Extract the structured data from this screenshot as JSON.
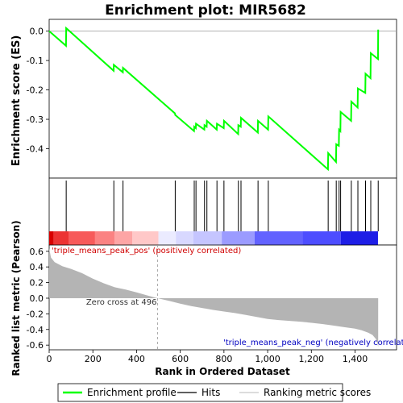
{
  "chart_data": {
    "type": "line",
    "title": "Enrichment plot: MIR5682",
    "xlabel": "Rank in Ordered Dataset",
    "ylabel_top": "Enrichment score (ES)",
    "ylabel_bottom": "Ranked list metric (Pearson)",
    "xlim": [
      0,
      1590
    ],
    "x_ticks": [
      0,
      200,
      400,
      600,
      800,
      1000,
      1200,
      1400
    ],
    "x_tick_labels": [
      "0",
      "200",
      "400",
      "600",
      "800",
      "1,000",
      "1,200",
      "1,400"
    ],
    "es_ylim": [
      -0.5,
      0.04
    ],
    "es_ticks": [
      0.0,
      -0.1,
      -0.2,
      -0.3,
      -0.4
    ],
    "es_tick_labels": [
      "0.0",
      "-0.1",
      "-0.2",
      "-0.3",
      "-0.4"
    ],
    "metric_ylim": [
      -0.66,
      0.68
    ],
    "metric_ticks": [
      0.6,
      0.4,
      0.2,
      0.0,
      -0.2,
      -0.4,
      -0.6
    ],
    "metric_tick_labels": [
      "0.6",
      "0.4",
      "0.2",
      "0.0",
      "-0.2",
      "-0.4",
      "-0.6"
    ],
    "hits": [
      78,
      296,
      338,
      577,
      664,
      672,
      711,
      722,
      768,
      800,
      866,
      878,
      956,
      1003,
      1277,
      1314,
      1327,
      1334,
      1383,
      1413,
      1448,
      1472,
      1506
    ],
    "es_profile": [
      [
        0,
        0.0
      ],
      [
        77,
        -0.05
      ],
      [
        78,
        0.01
      ],
      [
        295,
        -0.135
      ],
      [
        296,
        -0.115
      ],
      [
        337,
        -0.14
      ],
      [
        338,
        -0.125
      ],
      [
        576,
        -0.28
      ],
      [
        577,
        -0.285
      ],
      [
        663,
        -0.34
      ],
      [
        664,
        -0.325
      ],
      [
        671,
        -0.33
      ],
      [
        672,
        -0.315
      ],
      [
        710,
        -0.335
      ],
      [
        711,
        -0.32
      ],
      [
        721,
        -0.325
      ],
      [
        722,
        -0.305
      ],
      [
        767,
        -0.335
      ],
      [
        768,
        -0.315
      ],
      [
        799,
        -0.33
      ],
      [
        800,
        -0.305
      ],
      [
        865,
        -0.35
      ],
      [
        866,
        -0.32
      ],
      [
        877,
        -0.325
      ],
      [
        878,
        -0.295
      ],
      [
        955,
        -0.345
      ],
      [
        956,
        -0.305
      ],
      [
        1002,
        -0.335
      ],
      [
        1003,
        -0.29
      ],
      [
        1276,
        -0.47
      ],
      [
        1277,
        -0.415
      ],
      [
        1313,
        -0.445
      ],
      [
        1314,
        -0.385
      ],
      [
        1326,
        -0.39
      ],
      [
        1327,
        -0.335
      ],
      [
        1333,
        -0.34
      ],
      [
        1334,
        -0.275
      ],
      [
        1382,
        -0.305
      ],
      [
        1383,
        -0.24
      ],
      [
        1412,
        -0.26
      ],
      [
        1413,
        -0.195
      ],
      [
        1447,
        -0.21
      ],
      [
        1448,
        -0.145
      ],
      [
        1471,
        -0.16
      ],
      [
        1472,
        -0.075
      ],
      [
        1505,
        -0.095
      ],
      [
        1506,
        0.005
      ]
    ],
    "metric_curve": [
      [
        0,
        0.64
      ],
      [
        8,
        0.52
      ],
      [
        25,
        0.46
      ],
      [
        60,
        0.41
      ],
      [
        100,
        0.375
      ],
      [
        150,
        0.32
      ],
      [
        200,
        0.25
      ],
      [
        250,
        0.19
      ],
      [
        300,
        0.14
      ],
      [
        350,
        0.11
      ],
      [
        400,
        0.075
      ],
      [
        450,
        0.035
      ],
      [
        496,
        0.0
      ],
      [
        550,
        -0.035
      ],
      [
        600,
        -0.07
      ],
      [
        650,
        -0.1
      ],
      [
        700,
        -0.125
      ],
      [
        750,
        -0.15
      ],
      [
        800,
        -0.17
      ],
      [
        850,
        -0.19
      ],
      [
        900,
        -0.215
      ],
      [
        950,
        -0.24
      ],
      [
        1000,
        -0.265
      ],
      [
        1050,
        -0.28
      ],
      [
        1100,
        -0.29
      ],
      [
        1150,
        -0.3
      ],
      [
        1200,
        -0.315
      ],
      [
        1250,
        -0.33
      ],
      [
        1300,
        -0.35
      ],
      [
        1350,
        -0.37
      ],
      [
        1400,
        -0.39
      ],
      [
        1430,
        -0.41
      ],
      [
        1460,
        -0.44
      ],
      [
        1480,
        -0.47
      ],
      [
        1495,
        -0.52
      ],
      [
        1503,
        -0.58
      ],
      [
        1506,
        -0.63
      ]
    ],
    "metric_fill_color": "#b4b4b4",
    "es_line_color": "#00ff00",
    "zero_cross_label": "Zero cross at 496",
    "zero_cross_x": 496,
    "pos_label": "'triple_means_peak_pos' (positively correlated)",
    "neg_label": "'triple_means_peak_neg' (negatively correlated)",
    "legend_position": "bottom",
    "legend": [
      {
        "label": "Enrichment profile",
        "color": "#00ff00",
        "kind": "line"
      },
      {
        "label": "Hits",
        "color": "#000000",
        "kind": "line"
      },
      {
        "label": "Ranking metric scores",
        "color": "#c8c8c8",
        "kind": "line"
      }
    ],
    "colorbar_segments": [
      {
        "to": 20,
        "color": "#d80000"
      },
      {
        "to": 90,
        "color": "#ec3333"
      },
      {
        "to": 210,
        "color": "#f75a5a"
      },
      {
        "to": 300,
        "color": "#fb8282"
      },
      {
        "to": 380,
        "color": "#fda5a5"
      },
      {
        "to": 500,
        "color": "#ffc8c8"
      },
      {
        "to": 580,
        "color": "#ebebff"
      },
      {
        "to": 660,
        "color": "#d8d8ff"
      },
      {
        "to": 790,
        "color": "#c5c5ff"
      },
      {
        "to": 940,
        "color": "#9b9bff"
      },
      {
        "to": 1160,
        "color": "#6262ff"
      },
      {
        "to": 1335,
        "color": "#4d4dff"
      },
      {
        "to": 1505,
        "color": "#1e1ee6"
      }
    ]
  }
}
